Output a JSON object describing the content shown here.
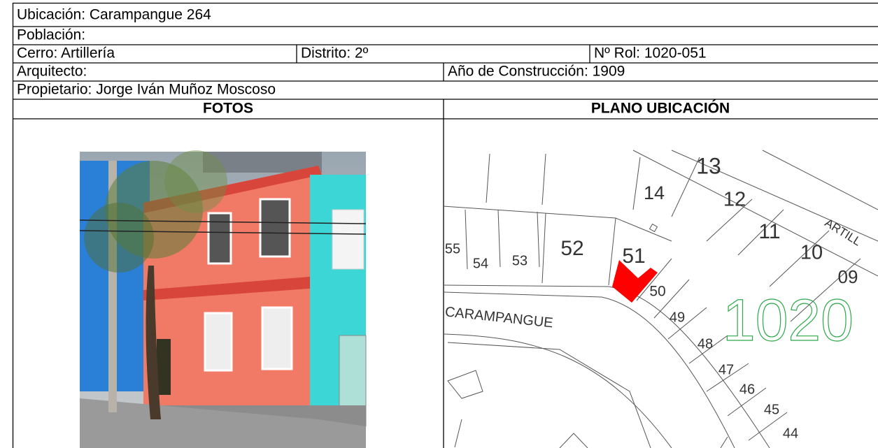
{
  "header": {
    "ubicacion": "Ubicación: Carampangue 264",
    "poblacion": "Población:",
    "cerro": "Cerro: Artillería",
    "distrito": "Distrito: 2º",
    "rol": "Nº Rol: 1020-051",
    "arquitecto": "Arquitecto:",
    "anio": "Año de Construcción: 1909",
    "propietario": "Propietario: Jorge Iván Muñoz Moscoso"
  },
  "sections": {
    "fotos": "FOTOS",
    "plano": "PLANO UBICACIÓN"
  },
  "map": {
    "street": "CARAMPANGUE",
    "street2": "ARTILL",
    "block": "1020",
    "lots": [
      "13",
      "14",
      "12",
      "11",
      "10",
      "09",
      "55",
      "54",
      "53",
      "52",
      "51",
      "50",
      "49",
      "48",
      "47",
      "46",
      "45",
      "44"
    ]
  }
}
